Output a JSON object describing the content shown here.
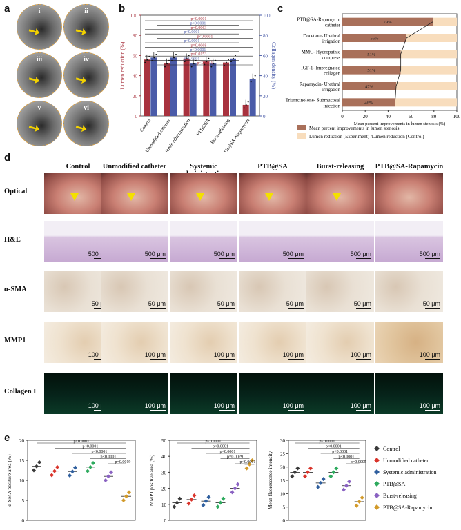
{
  "panel_labels": {
    "a": "a",
    "b": "b",
    "c": "c",
    "d": "d",
    "e": "e"
  },
  "panel_a": {
    "images": [
      "i",
      "ii",
      "iii",
      "iv",
      "v",
      "vi"
    ]
  },
  "panel_b": {
    "chart_data": {
      "type": "bar",
      "categories": [
        "Control",
        "Unmodified catheter",
        "Systemic administration",
        "PTB@SA",
        "Burst-releasing",
        "PTB@SA -Rapamycin"
      ],
      "series": [
        {
          "name": "Lumen reduction (%)",
          "values": [
            56,
            52,
            57,
            54,
            53,
            11
          ],
          "color": "#a8323e"
        },
        {
          "name": "Collagen density (%)",
          "values": [
            58,
            58,
            52,
            52,
            57,
            37
          ],
          "color": "#4a5ba8"
        }
      ],
      "ylabel": "Lumen reduction (%)",
      "y2label": "Collagen density (%)",
      "ylim": [
        0,
        100
      ],
      "yticks": [
        "0",
        "20",
        "40",
        "60",
        "80",
        "100"
      ],
      "y2ticks": [
        "0",
        "20",
        "40",
        "60",
        "80",
        "100"
      ],
      "annotations": [
        "p<0.0001",
        "p<0.0001",
        "p=0.0063",
        "p<0.0001",
        "p<0.0001",
        "p<0.0001",
        "p=0.0068",
        "p<0.0001",
        "p=0.0153",
        "p<0.0001",
        "p<0.0001"
      ]
    }
  },
  "panel_c": {
    "chart_data": {
      "type": "bar",
      "categories": [
        "PTB@SA-Rapamycin catheter",
        "Docetaxe- Urethral irrigation",
        "MMC- Hydropathic compress",
        "IGF-1- Impregnated collagen",
        "Rapamycin- Urethral irrigation",
        "Triamcinolone- Submucosal injection"
      ],
      "values": [
        79,
        56,
        51,
        51,
        47,
        46
      ],
      "value_labels": [
        "79%",
        "56%",
        "51%",
        "51%",
        "47%",
        "46%"
      ],
      "xlabel": "Mean percent improvements in lumen stenosis (%)",
      "xlim": [
        0,
        100
      ],
      "xticks": [
        "0",
        "20",
        "40",
        "60",
        "80",
        "100"
      ],
      "legend": [
        {
          "label": "Mean percent improvements in lumen stenosis",
          "color": "#a9705a"
        },
        {
          "label": "Lumen reduction (Experiment) /Lumen reduction (Control)",
          "color": "#f8ddbd"
        }
      ]
    }
  },
  "panel_d": {
    "columns": [
      "Control",
      "Unmodified catheter",
      "Systemic administration",
      "PTB@SA",
      "Burst-releasing",
      "PTB@SA-Rapamycin"
    ],
    "rows": [
      {
        "label": "Optical",
        "scale": ""
      },
      {
        "label": "H&E",
        "scale": "500 μm"
      },
      {
        "label": "α-SMA",
        "scale": "50 μm"
      },
      {
        "label": "MMP1",
        "scale": "100 μm"
      },
      {
        "label": "Collagen I",
        "scale": "100 μm"
      }
    ]
  },
  "panel_e": {
    "chart_data": [
      {
        "type": "scatter",
        "ylabel": "α-SMA positive area (%)",
        "ylim": [
          0,
          20
        ],
        "yticks": [
          "0",
          "5",
          "10",
          "15",
          "20"
        ],
        "means": [
          13.5,
          12.3,
          12.2,
          13.3,
          11.0,
          6.0
        ],
        "annotations": [
          "p<0.0001",
          "p<0.0001",
          "p<0.0001",
          "p<0.0001",
          "p=0.0019"
        ]
      },
      {
        "type": "scatter",
        "ylabel": "MMP1 positive area (%)",
        "ylim": [
          0,
          50
        ],
        "yticks": [
          "0",
          "10",
          "20",
          "30",
          "40",
          "50"
        ],
        "means": [
          11,
          13,
          12,
          11,
          20,
          35
        ],
        "annotations": [
          "p<0.0001",
          "p<0.0001",
          "p<0.0001",
          "p=0.0029",
          "p<0.0001"
        ]
      },
      {
        "type": "scatter",
        "ylabel": "Mean fluorescence intensity",
        "ylim": [
          0,
          30
        ],
        "yticks": [
          "0",
          "5",
          "10",
          "15",
          "20",
          "25",
          "30"
        ],
        "means": [
          18,
          18,
          14,
          18,
          13,
          7
        ],
        "annotations": [
          "p<0.0001",
          "p<0.0001",
          "p<0.0001",
          "p<0.0001",
          "p=0.0005"
        ]
      }
    ],
    "legend": [
      {
        "label": "Control",
        "color": "#3a3a3a"
      },
      {
        "label": "Unmodified catheter",
        "color": "#d9342b"
      },
      {
        "label": "Systemic administration",
        "color": "#2f5f9e"
      },
      {
        "label": "PTB@SA",
        "color": "#2eaa5e"
      },
      {
        "label": "Burst-releasing",
        "color": "#8a62c2"
      },
      {
        "label": "PTB@SA-Rapamycin",
        "color": "#d29a2a"
      }
    ]
  }
}
